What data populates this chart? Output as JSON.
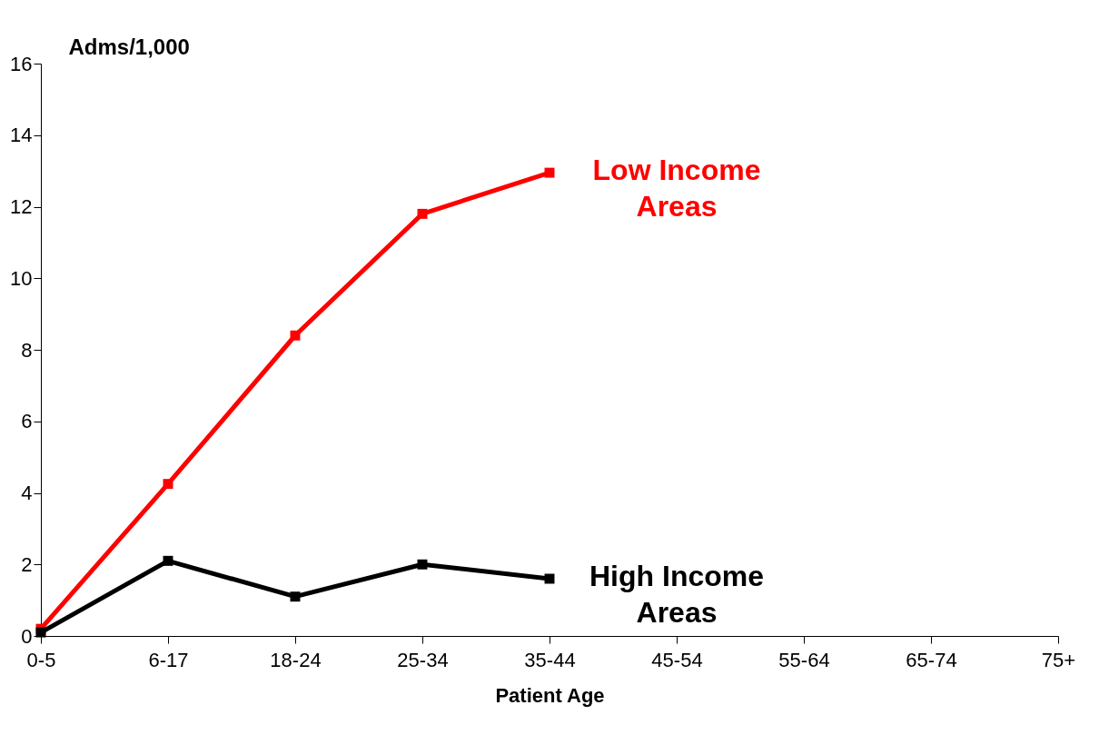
{
  "chart_data": {
    "type": "line",
    "xlabel": "Patient Age",
    "ylabel": "Adms/1,000",
    "categories": [
      "0-5",
      "6-17",
      "18-24",
      "25-34",
      "35-44",
      "45-54",
      "55-64",
      "65-74",
      "75+"
    ],
    "series": [
      {
        "name": "Low Income Areas",
        "color": "#ff0000",
        "values": [
          0.2,
          4.25,
          8.4,
          11.8,
          12.95,
          null,
          null,
          null,
          null
        ]
      },
      {
        "name": "High Income Areas",
        "color": "#000000",
        "values": [
          0.1,
          2.1,
          1.1,
          2.0,
          1.6,
          null,
          null,
          null,
          null
        ]
      }
    ],
    "ylim": [
      0,
      16
    ],
    "yticks": [
      0,
      2,
      4,
      6,
      8,
      10,
      12,
      14,
      16
    ],
    "marker": "square",
    "line_style": "solid"
  }
}
